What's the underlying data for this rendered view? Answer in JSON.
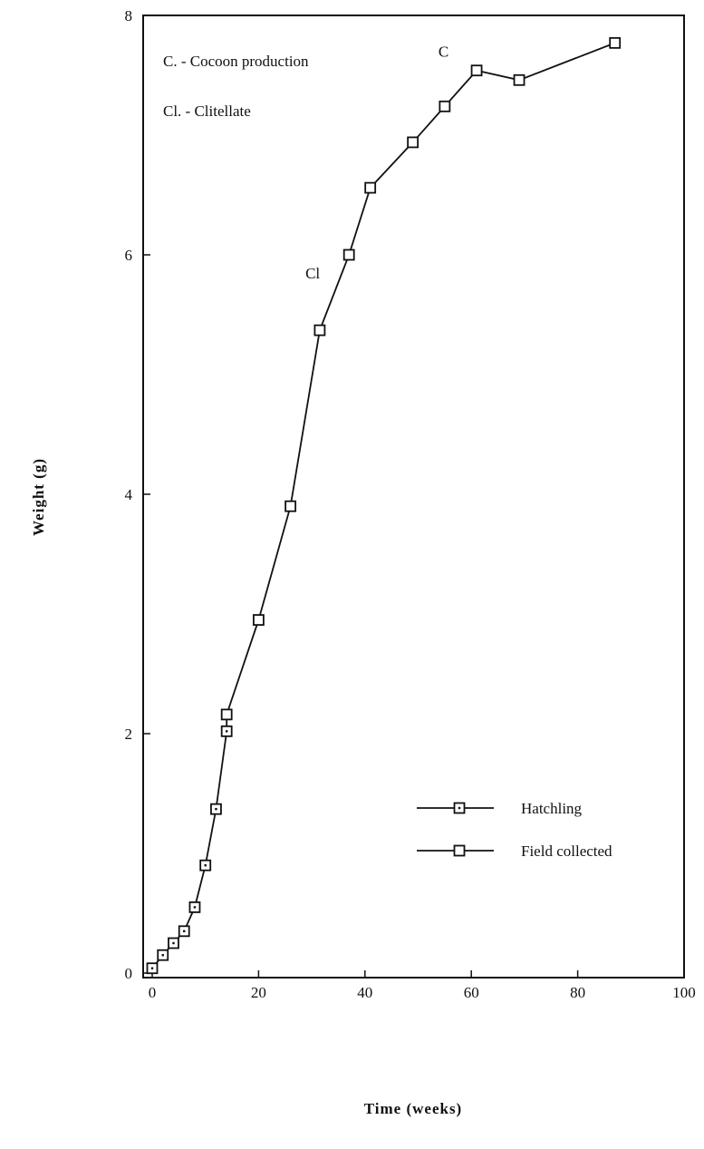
{
  "chart_data": {
    "type": "line",
    "xlabel": "Time (weeks)",
    "ylabel": "Weight (g)",
    "xlim": [
      0,
      100
    ],
    "ylim": [
      0,
      8
    ],
    "x_ticks": [
      0,
      20,
      40,
      60,
      80,
      100
    ],
    "y_ticks": [
      0,
      2,
      4,
      6,
      8
    ],
    "grid": false,
    "legend_position": "bottom-right",
    "series": [
      {
        "name": "Hatchling",
        "marker": "square-dot",
        "points": [
          [
            0,
            0.04
          ],
          [
            2,
            0.15
          ],
          [
            4,
            0.25
          ],
          [
            6,
            0.35
          ],
          [
            8,
            0.55
          ],
          [
            10,
            0.9
          ],
          [
            12,
            1.37
          ],
          [
            14,
            2.02
          ]
        ]
      },
      {
        "name": "Field collected",
        "marker": "square",
        "points": [
          [
            14,
            2.16
          ],
          [
            20,
            2.95
          ],
          [
            26,
            3.9
          ],
          [
            31.5,
            5.37
          ],
          [
            37,
            6.0
          ],
          [
            41,
            6.56
          ],
          [
            49,
            6.94
          ],
          [
            55,
            7.24
          ],
          [
            61,
            7.54
          ],
          [
            69,
            7.46
          ],
          [
            87,
            7.77
          ]
        ]
      }
    ],
    "annotations": [
      {
        "text": "C",
        "x": 55,
        "y": 7.7
      },
      {
        "text": "Cl",
        "x": 30,
        "y": 5.85
      }
    ],
    "notes": [
      "C. - Cocoon production",
      "Cl. - Clitellate"
    ]
  }
}
